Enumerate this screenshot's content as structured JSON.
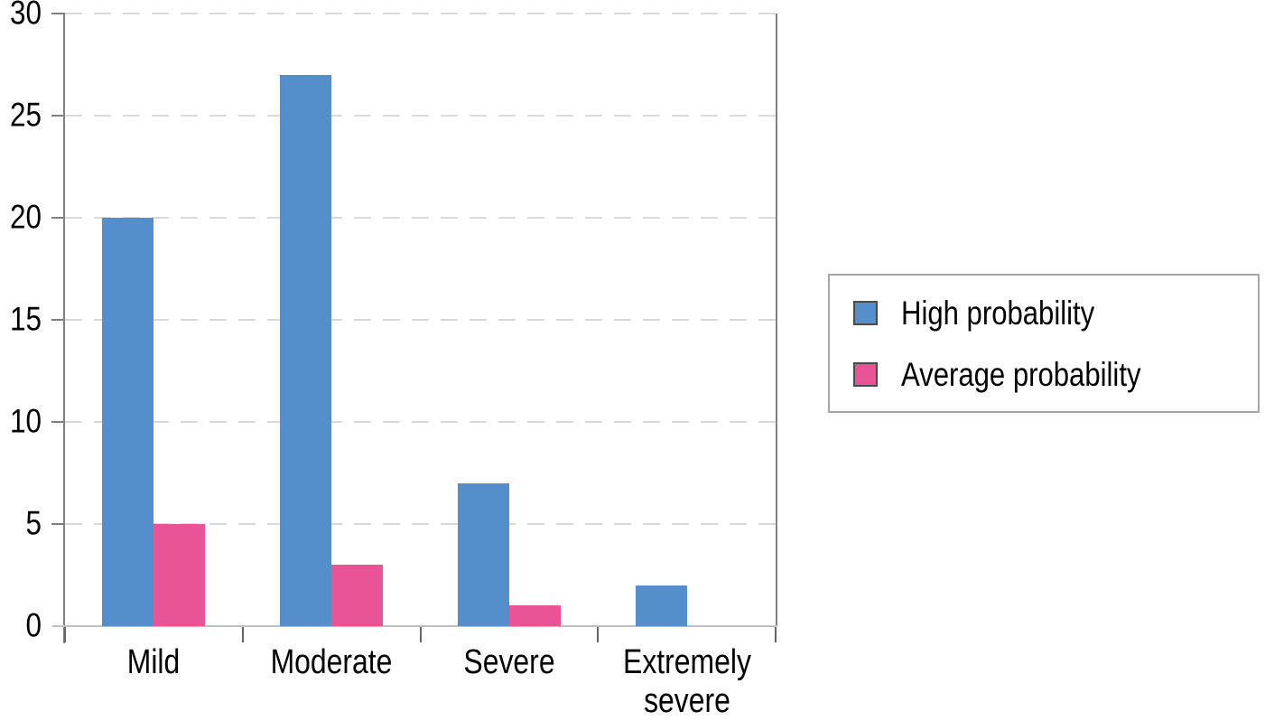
{
  "chart_data": {
    "type": "bar",
    "title": "",
    "xlabel": "",
    "ylabel": "",
    "categories": [
      "Mild",
      "Moderate",
      "Severe",
      "Extremely severe"
    ],
    "series": [
      {
        "name": "High probability",
        "color": "#548ECB",
        "values": [
          20,
          27,
          7,
          2
        ]
      },
      {
        "name": "Average probability",
        "color": "#E85496",
        "values": [
          5,
          3,
          1,
          0
        ]
      }
    ],
    "ylim": [
      0,
      30
    ],
    "yticks": [
      0,
      5,
      10,
      15,
      20,
      25,
      30
    ],
    "grid": "horizontal-dashed",
    "legend_position": "right"
  },
  "colors": {
    "y_axis": "#7f7f7f",
    "x_baseline": "#bfbfbf",
    "plot_right_border": "#808080",
    "gridline": "#d9d9d9",
    "x_tick": "#666666",
    "legend_border": "#a6a6a6",
    "swatch_border": "#4a4a4a",
    "text": "#000000"
  }
}
